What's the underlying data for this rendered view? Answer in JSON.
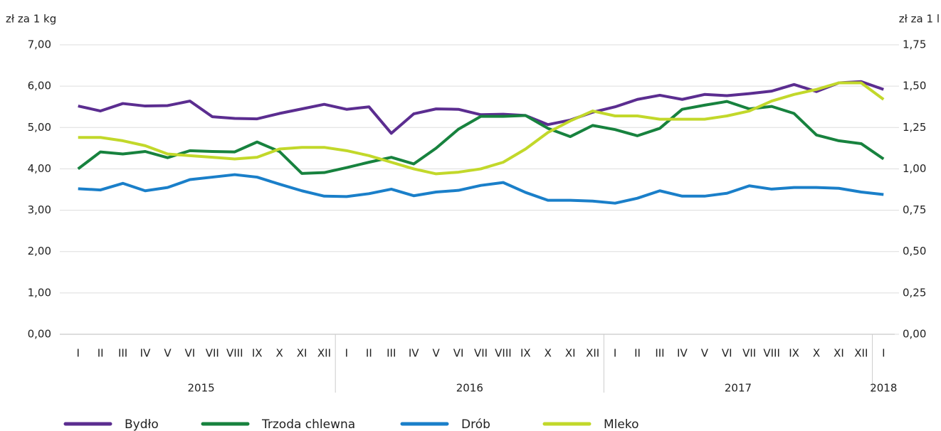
{
  "chart_data": {
    "type": "line",
    "ylabel": "zł za 1 kg",
    "y2label": "zł za 1 l",
    "categories": [
      "I",
      "II",
      "III",
      "IV",
      "V",
      "VI",
      "VII",
      "VIII",
      "IX",
      "X",
      "XI",
      "XII",
      "I",
      "II",
      "III",
      "IV",
      "V",
      "VI",
      "VII",
      "VIII",
      "IX",
      "X",
      "XI",
      "XII",
      "I",
      "II",
      "III",
      "IV",
      "V",
      "VI",
      "VII",
      "VIII",
      "IX",
      "X",
      "XI",
      "XII",
      "I"
    ],
    "groups": [
      {
        "label": "2015",
        "count": 12
      },
      {
        "label": "2016",
        "count": 12
      },
      {
        "label": "2017",
        "count": 12
      },
      {
        "label": "2018",
        "count": 1
      }
    ],
    "ylim": [
      0,
      7
    ],
    "yticks": [
      {
        "value": 0,
        "label": "0,00"
      },
      {
        "value": 1,
        "label": "1,00"
      },
      {
        "value": 2,
        "label": "2,00"
      },
      {
        "value": 3,
        "label": "3,00"
      },
      {
        "value": 4,
        "label": "4,00"
      },
      {
        "value": 5,
        "label": "5,00"
      },
      {
        "value": 6,
        "label": "6,00"
      },
      {
        "value": 7,
        "label": "7,00"
      }
    ],
    "y2lim": [
      0,
      1.75
    ],
    "y2ticks": [
      {
        "value": 0,
        "label": "0,00"
      },
      {
        "value": 0.25,
        "label": "0,25"
      },
      {
        "value": 0.5,
        "label": "0,50"
      },
      {
        "value": 0.75,
        "label": "0,75"
      },
      {
        "value": 1,
        "label": "1,00"
      },
      {
        "value": 1.25,
        "label": "1,25"
      },
      {
        "value": 1.5,
        "label": "1,50"
      },
      {
        "value": 1.75,
        "label": "1,75"
      }
    ],
    "grid": true,
    "legend": "bottom",
    "series": [
      {
        "name": "Bydło",
        "color": "#5b2d90",
        "values": [
          5.52,
          5.4,
          5.58,
          5.52,
          5.53,
          5.64,
          5.26,
          5.22,
          5.21,
          5.34,
          5.45,
          5.56,
          5.44,
          5.5,
          4.86,
          5.33,
          5.45,
          5.44,
          5.31,
          5.32,
          5.29,
          5.07,
          5.18,
          5.37,
          5.5,
          5.68,
          5.78,
          5.68,
          5.8,
          5.77,
          5.82,
          5.88,
          6.04,
          5.87,
          6.08,
          6.11,
          5.92
        ]
      },
      {
        "name": "Trzoda chlewna",
        "color": "#17823e",
        "values": [
          4.0,
          4.41,
          4.36,
          4.42,
          4.27,
          4.44,
          4.42,
          4.41,
          4.65,
          4.42,
          3.89,
          3.91,
          4.03,
          4.16,
          4.28,
          4.12,
          4.5,
          4.96,
          5.27,
          5.27,
          5.29,
          4.98,
          4.78,
          5.05,
          4.95,
          4.8,
          4.98,
          5.44,
          5.54,
          5.63,
          5.45,
          5.51,
          5.34,
          4.82,
          4.68,
          4.61,
          4.24
        ]
      },
      {
        "name": "Drób",
        "color": "#1a7fc9",
        "values": [
          3.52,
          3.49,
          3.65,
          3.47,
          3.55,
          3.74,
          3.8,
          3.86,
          3.8,
          3.63,
          3.47,
          3.34,
          3.33,
          3.4,
          3.51,
          3.35,
          3.44,
          3.48,
          3.6,
          3.67,
          3.43,
          3.24,
          3.24,
          3.22,
          3.17,
          3.29,
          3.47,
          3.34,
          3.34,
          3.41,
          3.59,
          3.51,
          3.55,
          3.55,
          3.53,
          3.44,
          3.38
        ]
      },
      {
        "name": "Mleko",
        "color": "#c2d82a",
        "axis": "y2",
        "values": [
          1.19,
          1.19,
          1.17,
          1.14,
          1.09,
          1.08,
          1.07,
          1.06,
          1.07,
          1.12,
          1.13,
          1.13,
          1.11,
          1.08,
          1.04,
          1.0,
          0.97,
          0.98,
          1.0,
          1.04,
          1.12,
          1.22,
          1.29,
          1.35,
          1.32,
          1.32,
          1.3,
          1.3,
          1.3,
          1.32,
          1.35,
          1.41,
          1.45,
          1.48,
          1.52,
          1.52,
          1.42
        ]
      }
    ]
  }
}
